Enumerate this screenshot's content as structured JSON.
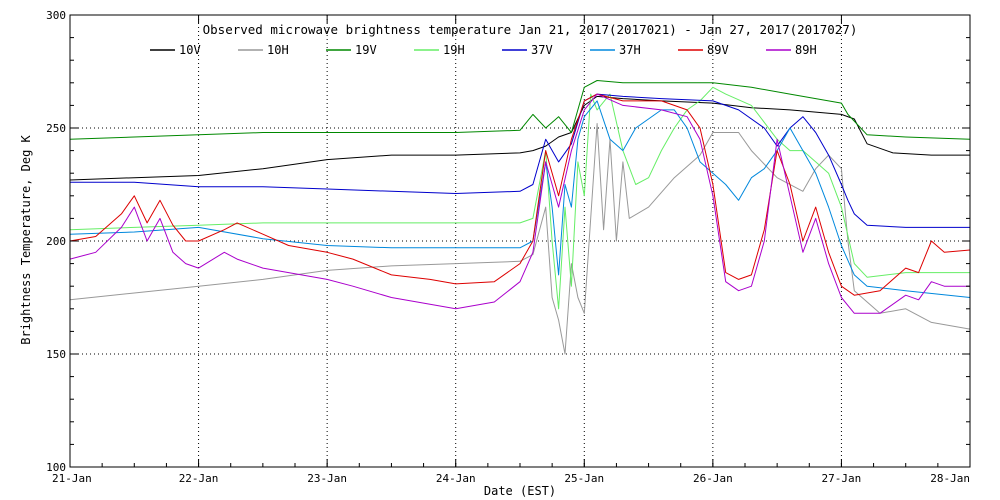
{
  "chart_data": {
    "type": "line",
    "title": "Observed microwave brightness temperature Jan 21, 2017(2017021) - Jan 27, 2017(2017027)",
    "xlabel": "Date (EST)",
    "ylabel": "Brightness Temperature, Deg K",
    "ylim": [
      100,
      300
    ],
    "yticks": [
      "100",
      "150",
      "200",
      "250",
      "300"
    ],
    "xlim": [
      0,
      7
    ],
    "xticks": [
      "21-Jan",
      "22-Jan",
      "23-Jan",
      "24-Jan",
      "25-Jan",
      "26-Jan",
      "27-Jan",
      "28-Jan"
    ],
    "grid": true,
    "legend_position": "top",
    "series": [
      {
        "name": "10V",
        "color": "#000000",
        "points": [
          [
            0,
            227
          ],
          [
            0.5,
            228
          ],
          [
            1,
            229
          ],
          [
            1.5,
            232
          ],
          [
            2,
            236
          ],
          [
            2.5,
            238
          ],
          [
            3,
            238
          ],
          [
            3.5,
            239
          ],
          [
            3.6,
            240
          ],
          [
            3.7,
            242
          ],
          [
            3.8,
            246
          ],
          [
            3.9,
            248
          ],
          [
            4.0,
            260
          ],
          [
            4.1,
            264
          ],
          [
            4.3,
            263
          ],
          [
            4.6,
            262
          ],
          [
            5,
            261
          ],
          [
            5.3,
            259
          ],
          [
            5.6,
            258
          ],
          [
            6.0,
            256
          ],
          [
            6.1,
            254
          ],
          [
            6.2,
            243
          ],
          [
            6.4,
            239
          ],
          [
            6.7,
            238
          ],
          [
            7,
            238
          ]
        ]
      },
      {
        "name": "10H",
        "color": "#999999",
        "points": [
          [
            0,
            174
          ],
          [
            0.5,
            177
          ],
          [
            1,
            180
          ],
          [
            1.5,
            183
          ],
          [
            2,
            187
          ],
          [
            2.5,
            189
          ],
          [
            3,
            190
          ],
          [
            3.5,
            191
          ],
          [
            3.6,
            194
          ],
          [
            3.7,
            215
          ],
          [
            3.75,
            175
          ],
          [
            3.8,
            165
          ],
          [
            3.85,
            150
          ],
          [
            3.9,
            190
          ],
          [
            3.95,
            175
          ],
          [
            4.0,
            168
          ],
          [
            4.05,
            210
          ],
          [
            4.1,
            252
          ],
          [
            4.15,
            205
          ],
          [
            4.2,
            245
          ],
          [
            4.25,
            200
          ],
          [
            4.3,
            235
          ],
          [
            4.35,
            210
          ],
          [
            4.5,
            215
          ],
          [
            4.7,
            228
          ],
          [
            4.9,
            238
          ],
          [
            5.0,
            248
          ],
          [
            5.2,
            248
          ],
          [
            5.3,
            240
          ],
          [
            5.5,
            228
          ],
          [
            5.7,
            222
          ],
          [
            5.8,
            232
          ],
          [
            5.9,
            238
          ],
          [
            6.0,
            232
          ],
          [
            6.05,
            200
          ],
          [
            6.1,
            178
          ],
          [
            6.3,
            168
          ],
          [
            6.5,
            170
          ],
          [
            6.7,
            164
          ],
          [
            7,
            161
          ]
        ]
      },
      {
        "name": "19V",
        "color": "#008800",
        "points": [
          [
            0,
            245
          ],
          [
            0.5,
            246
          ],
          [
            1,
            247
          ],
          [
            1.5,
            248
          ],
          [
            2,
            248
          ],
          [
            2.5,
            248
          ],
          [
            3,
            248
          ],
          [
            3.5,
            249
          ],
          [
            3.6,
            256
          ],
          [
            3.7,
            250
          ],
          [
            3.8,
            255
          ],
          [
            3.9,
            248
          ],
          [
            4.0,
            268
          ],
          [
            4.1,
            271
          ],
          [
            4.3,
            270
          ],
          [
            4.6,
            270
          ],
          [
            5,
            270
          ],
          [
            5.3,
            268
          ],
          [
            5.6,
            265
          ],
          [
            6.0,
            261
          ],
          [
            6.05,
            256
          ],
          [
            6.2,
            247
          ],
          [
            6.5,
            246
          ],
          [
            7,
            245
          ]
        ]
      },
      {
        "name": "19H",
        "color": "#66ee66",
        "points": [
          [
            0,
            205
          ],
          [
            0.5,
            206
          ],
          [
            1,
            207
          ],
          [
            1.5,
            208
          ],
          [
            2,
            208
          ],
          [
            2.5,
            208
          ],
          [
            3,
            208
          ],
          [
            3.5,
            208
          ],
          [
            3.6,
            210
          ],
          [
            3.7,
            240
          ],
          [
            3.75,
            200
          ],
          [
            3.8,
            170
          ],
          [
            3.85,
            215
          ],
          [
            3.9,
            180
          ],
          [
            3.95,
            235
          ],
          [
            4.0,
            220
          ],
          [
            4.05,
            265
          ],
          [
            4.1,
            258
          ],
          [
            4.2,
            265
          ],
          [
            4.3,
            240
          ],
          [
            4.4,
            225
          ],
          [
            4.5,
            228
          ],
          [
            4.6,
            240
          ],
          [
            4.7,
            250
          ],
          [
            4.8,
            258
          ],
          [
            4.9,
            262
          ],
          [
            5.0,
            268
          ],
          [
            5.1,
            265
          ],
          [
            5.3,
            260
          ],
          [
            5.5,
            245
          ],
          [
            5.6,
            240
          ],
          [
            5.7,
            240
          ],
          [
            5.8,
            235
          ],
          [
            5.9,
            230
          ],
          [
            6.0,
            215
          ],
          [
            6.1,
            190
          ],
          [
            6.2,
            184
          ],
          [
            6.5,
            186
          ],
          [
            7,
            186
          ]
        ]
      },
      {
        "name": "37V",
        "color": "#0000cc",
        "points": [
          [
            0,
            226
          ],
          [
            0.5,
            226
          ],
          [
            1,
            224
          ],
          [
            1.5,
            224
          ],
          [
            2,
            223
          ],
          [
            2.5,
            222
          ],
          [
            3,
            221
          ],
          [
            3.5,
            222
          ],
          [
            3.6,
            225
          ],
          [
            3.7,
            245
          ],
          [
            3.8,
            235
          ],
          [
            3.9,
            243
          ],
          [
            4.0,
            262
          ],
          [
            4.1,
            265
          ],
          [
            4.3,
            264
          ],
          [
            4.6,
            263
          ],
          [
            5,
            262
          ],
          [
            5.2,
            258
          ],
          [
            5.4,
            250
          ],
          [
            5.5,
            242
          ],
          [
            5.6,
            250
          ],
          [
            5.7,
            255
          ],
          [
            5.8,
            248
          ],
          [
            5.9,
            238
          ],
          [
            6.0,
            225
          ],
          [
            6.05,
            218
          ],
          [
            6.1,
            212
          ],
          [
            6.2,
            207
          ],
          [
            6.5,
            206
          ],
          [
            7,
            206
          ]
        ]
      },
      {
        "name": "37H",
        "color": "#0088dd",
        "points": [
          [
            0,
            203
          ],
          [
            0.5,
            204
          ],
          [
            1,
            206
          ],
          [
            1.5,
            201
          ],
          [
            2,
            198
          ],
          [
            2.5,
            197
          ],
          [
            3,
            197
          ],
          [
            3.5,
            197
          ],
          [
            3.6,
            200
          ],
          [
            3.7,
            235
          ],
          [
            3.75,
            215
          ],
          [
            3.8,
            185
          ],
          [
            3.85,
            225
          ],
          [
            3.9,
            215
          ],
          [
            3.95,
            245
          ],
          [
            4.0,
            255
          ],
          [
            4.1,
            262
          ],
          [
            4.2,
            245
          ],
          [
            4.3,
            240
          ],
          [
            4.4,
            250
          ],
          [
            4.6,
            258
          ],
          [
            4.7,
            258
          ],
          [
            4.8,
            250
          ],
          [
            4.9,
            235
          ],
          [
            5.0,
            230
          ],
          [
            5.1,
            225
          ],
          [
            5.2,
            218
          ],
          [
            5.3,
            228
          ],
          [
            5.4,
            232
          ],
          [
            5.5,
            240
          ],
          [
            5.6,
            250
          ],
          [
            5.7,
            240
          ],
          [
            5.8,
            230
          ],
          [
            5.9,
            215
          ],
          [
            6.0,
            198
          ],
          [
            6.1,
            185
          ],
          [
            6.2,
            180
          ],
          [
            6.5,
            178
          ],
          [
            7,
            175
          ]
        ]
      },
      {
        "name": "89V",
        "color": "#dd0000",
        "points": [
          [
            0,
            200
          ],
          [
            0.2,
            202
          ],
          [
            0.4,
            212
          ],
          [
            0.5,
            220
          ],
          [
            0.6,
            208
          ],
          [
            0.7,
            218
          ],
          [
            0.8,
            207
          ],
          [
            0.9,
            200
          ],
          [
            1,
            200
          ],
          [
            1.2,
            205
          ],
          [
            1.3,
            208
          ],
          [
            1.5,
            203
          ],
          [
            1.7,
            198
          ],
          [
            2,
            195
          ],
          [
            2.2,
            192
          ],
          [
            2.5,
            185
          ],
          [
            2.8,
            183
          ],
          [
            3.0,
            181
          ],
          [
            3.3,
            182
          ],
          [
            3.5,
            190
          ],
          [
            3.6,
            200
          ],
          [
            3.7,
            240
          ],
          [
            3.8,
            220
          ],
          [
            3.9,
            245
          ],
          [
            4.0,
            262
          ],
          [
            4.1,
            265
          ],
          [
            4.3,
            262
          ],
          [
            4.6,
            262
          ],
          [
            4.8,
            258
          ],
          [
            4.9,
            250
          ],
          [
            5.0,
            225
          ],
          [
            5.1,
            186
          ],
          [
            5.2,
            183
          ],
          [
            5.3,
            185
          ],
          [
            5.4,
            205
          ],
          [
            5.5,
            240
          ],
          [
            5.6,
            225
          ],
          [
            5.7,
            200
          ],
          [
            5.8,
            215
          ],
          [
            5.9,
            195
          ],
          [
            6.0,
            180
          ],
          [
            6.1,
            176
          ],
          [
            6.3,
            178
          ],
          [
            6.5,
            188
          ],
          [
            6.6,
            186
          ],
          [
            6.7,
            200
          ],
          [
            6.8,
            195
          ],
          [
            7,
            196
          ]
        ]
      },
      {
        "name": "89H",
        "color": "#aa00cc",
        "points": [
          [
            0,
            192
          ],
          [
            0.2,
            195
          ],
          [
            0.4,
            206
          ],
          [
            0.5,
            215
          ],
          [
            0.6,
            200
          ],
          [
            0.7,
            210
          ],
          [
            0.8,
            195
          ],
          [
            0.9,
            190
          ],
          [
            1,
            188
          ],
          [
            1.2,
            195
          ],
          [
            1.3,
            192
          ],
          [
            1.5,
            188
          ],
          [
            1.7,
            186
          ],
          [
            2,
            183
          ],
          [
            2.2,
            180
          ],
          [
            2.5,
            175
          ],
          [
            2.8,
            172
          ],
          [
            3.0,
            170
          ],
          [
            3.3,
            173
          ],
          [
            3.5,
            182
          ],
          [
            3.6,
            195
          ],
          [
            3.7,
            235
          ],
          [
            3.8,
            215
          ],
          [
            3.9,
            240
          ],
          [
            4.0,
            258
          ],
          [
            4.1,
            265
          ],
          [
            4.3,
            260
          ],
          [
            4.6,
            258
          ],
          [
            4.8,
            255
          ],
          [
            4.9,
            245
          ],
          [
            5.0,
            220
          ],
          [
            5.1,
            182
          ],
          [
            5.2,
            178
          ],
          [
            5.3,
            180
          ],
          [
            5.4,
            200
          ],
          [
            5.5,
            245
          ],
          [
            5.6,
            220
          ],
          [
            5.7,
            195
          ],
          [
            5.8,
            210
          ],
          [
            5.9,
            190
          ],
          [
            6.0,
            175
          ],
          [
            6.1,
            168
          ],
          [
            6.3,
            168
          ],
          [
            6.5,
            176
          ],
          [
            6.6,
            174
          ],
          [
            6.7,
            182
          ],
          [
            6.8,
            180
          ],
          [
            7,
            180
          ]
        ]
      }
    ]
  }
}
